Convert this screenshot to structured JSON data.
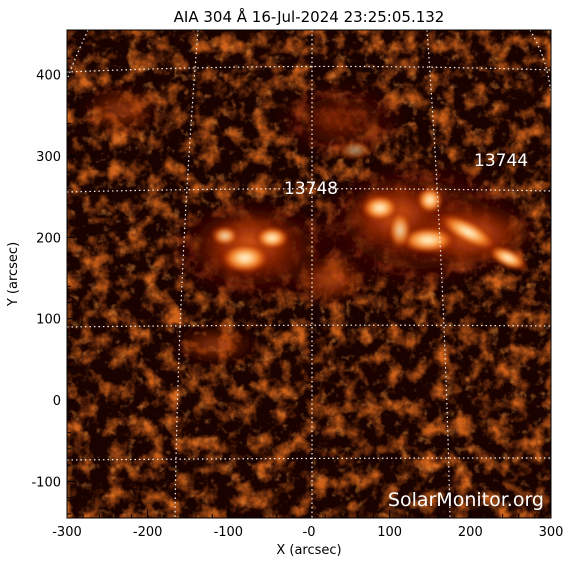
{
  "title": "AIA 304 Å 16-Jul-2024 23:25:05.132",
  "axes": {
    "xlabel": "X (arcsec)",
    "ylabel": "Y (arcsec)",
    "xlim": [
      -300,
      300
    ],
    "ylim": [
      -145,
      455
    ],
    "x_ticks": [
      "-300",
      "-200",
      "-100",
      "-0",
      "100",
      "200",
      "300"
    ],
    "y_ticks": [
      "400",
      "300",
      "200",
      "100",
      "0",
      "-100"
    ]
  },
  "active_regions": [
    "13748",
    "13744"
  ],
  "watermark": "SolarMonitor.org",
  "colors": {
    "background": "#ffffff",
    "sky": "#1a0200",
    "plasma_dark": "#5a0e00",
    "plasma_mid": "#b83a08",
    "plasma_bright": "#f07a20",
    "plasma_core": "#ffd9a0",
    "grid": "#ffffff"
  }
}
